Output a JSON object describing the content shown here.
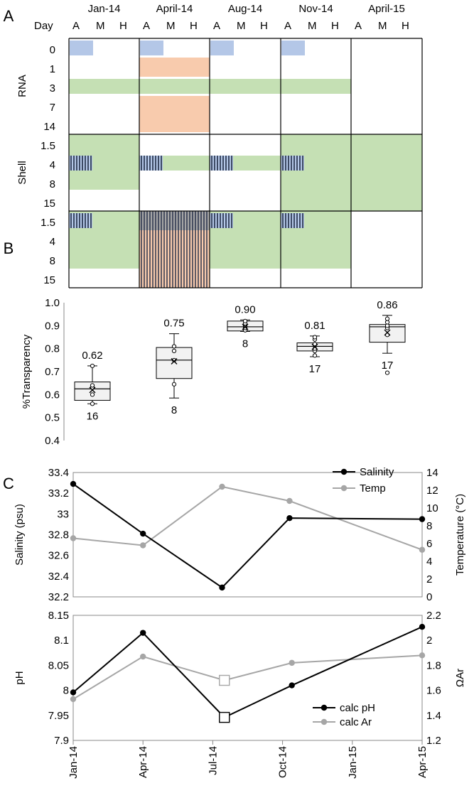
{
  "panelA": {
    "label": "A",
    "day_label": "Day",
    "months": [
      "Jan-14",
      "April-14",
      "Aug-14",
      "Nov-14",
      "April-15"
    ],
    "subcols": [
      "A",
      "M",
      "H"
    ],
    "groups": [
      {
        "name": "RNA",
        "days": [
          "0",
          "1",
          "3",
          "7",
          "14"
        ]
      },
      {
        "name": "Shell",
        "days": [
          "1.5",
          "4",
          "8",
          "15"
        ]
      },
      {
        "name": "",
        "days": [
          "1.5",
          "4",
          "8",
          "15"
        ]
      }
    ],
    "colors": {
      "blue": "#b4c7e7",
      "orange": "#f8cbad",
      "green": "#c5e0b4",
      "gray": "#a6a6a6"
    }
  },
  "chart_data": [
    {
      "type": "box",
      "panel": "B",
      "ylabel": "%Transparency",
      "ylim": [
        0.4,
        1.0
      ],
      "yticks": [
        "1.0",
        "0.9",
        "0.8",
        "0.7",
        "0.6",
        "0.5",
        "0.4"
      ],
      "boxes": [
        {
          "group": "Jan-14",
          "mean_label": "0.62",
          "n": "16",
          "min": 0.56,
          "q1": 0.575,
          "median": 0.625,
          "q3": 0.655,
          "max": 0.725,
          "mean": 0.62,
          "points": [
            0.56,
            0.6,
            0.63,
            0.64,
            0.725
          ]
        },
        {
          "group": "April-14",
          "mean_label": "0.75",
          "n": "8",
          "min": 0.585,
          "q1": 0.67,
          "median": 0.75,
          "q3": 0.805,
          "max": 0.865,
          "mean": 0.745,
          "points": [
            0.645,
            0.75,
            0.79,
            0.81
          ]
        },
        {
          "group": "Aug-14",
          "mean_label": "0.90",
          "n": "8",
          "min": 0.875,
          "q1": 0.877,
          "median": 0.895,
          "q3": 0.92,
          "max": 0.925,
          "mean": 0.895,
          "points": [
            0.88,
            0.89,
            0.9,
            0.91,
            0.92
          ]
        },
        {
          "group": "Nov-14",
          "mean_label": "0.81",
          "n": "17",
          "min": 0.765,
          "q1": 0.79,
          "median": 0.81,
          "q3": 0.825,
          "max": 0.855,
          "mean": 0.808,
          "points": [
            0.77,
            0.79,
            0.8,
            0.82,
            0.84,
            0.85
          ]
        },
        {
          "group": "April-15",
          "mean_label": "0.86",
          "n": "17",
          "min": 0.78,
          "q1": 0.828,
          "median": 0.895,
          "q3": 0.905,
          "max": 0.945,
          "mean": 0.87,
          "points": [
            0.695,
            0.86,
            0.89,
            0.9,
            0.915,
            0.93
          ]
        }
      ]
    },
    {
      "type": "line",
      "panel": "C-top",
      "ylabel": "Salinity (psu)",
      "y2label": "Temperature (°C)",
      "ylim": [
        32.2,
        33.4
      ],
      "y2lim": [
        0,
        14
      ],
      "yticks": [
        "33.4",
        "33.2",
        "33",
        "32.8",
        "32.6",
        "32.4",
        "32.2"
      ],
      "y2ticks": [
        "14",
        "12",
        "10",
        "8",
        "6",
        "4",
        "2",
        "0"
      ],
      "series": [
        {
          "name": "Salinity",
          "color": "#000000",
          "points": [
            [
              0,
              33.29
            ],
            [
              3,
              32.81
            ],
            [
              6.4,
              32.29
            ],
            [
              9.3,
              32.96
            ],
            [
              15,
              32.95
            ]
          ]
        },
        {
          "name": "Temp",
          "color": "#a6a6a6",
          "axis": "right",
          "points": [
            [
              0,
              6.6
            ],
            [
              3,
              5.8
            ],
            [
              6.4,
              12.4
            ],
            [
              9.3,
              10.8
            ],
            [
              15,
              5.3
            ]
          ]
        }
      ]
    },
    {
      "type": "line",
      "panel": "C-bottom",
      "ylabel": "pH",
      "y2label": "ΩAr",
      "ylim": [
        7.9,
        8.15
      ],
      "y2lim": [
        1.2,
        2.2
      ],
      "yticks": [
        "8.15",
        "8.1",
        "8.05",
        "8",
        "7.95",
        "7.9"
      ],
      "y2ticks": [
        "2.2",
        "2",
        "1.8",
        "1.6",
        "1.4",
        "1.2"
      ],
      "x": [
        "Jan-14",
        "Apr-14",
        "Jul-14",
        "Oct-14",
        "Jan-15",
        "Apr-15"
      ],
      "series": [
        {
          "name": "calc pH",
          "color": "#000000",
          "points": [
            [
              0,
              7.996
            ],
            [
              3,
              8.115
            ],
            [
              6.5,
              7.946
            ],
            [
              9.4,
              8.01
            ],
            [
              15,
              8.127
            ]
          ],
          "square_index": 2
        },
        {
          "name": "calc Ar",
          "color": "#a6a6a6",
          "axis": "right",
          "points": [
            [
              0,
              1.53
            ],
            [
              3,
              1.87
            ],
            [
              6.5,
              1.68
            ],
            [
              9.4,
              1.82
            ],
            [
              15,
              1.88
            ]
          ],
          "square_index": 2
        }
      ]
    }
  ],
  "panelB": {
    "label": "B"
  },
  "panelC": {
    "label": "C"
  }
}
